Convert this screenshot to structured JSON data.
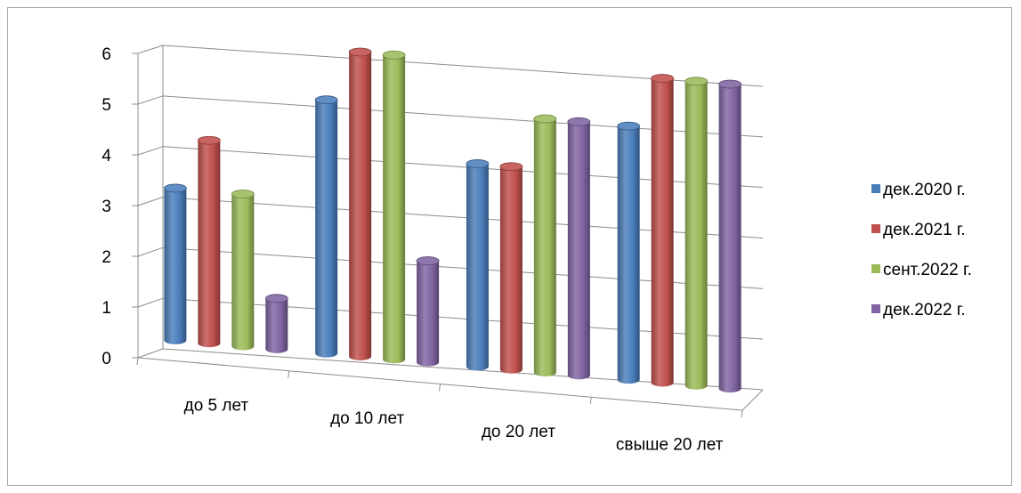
{
  "chart_data": {
    "type": "bar",
    "style": "3d-cylinder",
    "title": "",
    "xlabel": "",
    "ylabel": "",
    "ylim": [
      0,
      6
    ],
    "yticks": [
      0,
      1,
      2,
      3,
      4,
      5,
      6
    ],
    "grid": true,
    "legend_position": "right",
    "categories": [
      "до 5 лет",
      "до 10 лет",
      "до 20 лет",
      "свыше 20 лет"
    ],
    "series": [
      {
        "name": "дек.2020 г.",
        "color": "#4a7ebb",
        "values": [
          3.0,
          5.0,
          4.0,
          5.0
        ]
      },
      {
        "name": "дек.2021 г.",
        "color": "#c0504d",
        "values": [
          4.0,
          6.0,
          4.0,
          6.0
        ]
      },
      {
        "name": "сент.2022 г.",
        "color": "#9bbb59",
        "values": [
          3.0,
          6.0,
          5.0,
          6.0
        ]
      },
      {
        "name": "дек.2022 г.",
        "color": "#8064a2",
        "values": [
          1.0,
          2.0,
          5.0,
          6.0
        ]
      }
    ]
  }
}
